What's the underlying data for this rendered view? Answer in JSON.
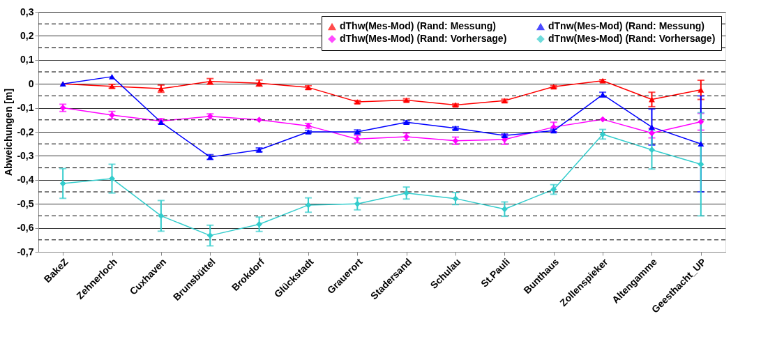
{
  "chart_data": {
    "type": "line",
    "ylabel": "Abweichungen [m]",
    "categories": [
      "BakeZ",
      "Zehnerloch",
      "Cuxhaven",
      "Brunsbüttel",
      "Brokdorf",
      "Glückstadt",
      "Grauerort",
      "Stadersand",
      "Schulau",
      "St.Pauli",
      "Bunthaus",
      "Zollenspieker",
      "Altengamme",
      "Geesthacht_UP"
    ],
    "ylim": [
      -0.7,
      0.3
    ],
    "yticks": [
      {
        "value": 0.3,
        "label": "0,3"
      },
      {
        "value": 0.2,
        "label": "0,2"
      },
      {
        "value": 0.1,
        "label": "0,1"
      },
      0,
      {
        "value": -0.1,
        "label": "-0,1"
      },
      {
        "value": -0.2,
        "label": "-0,2"
      },
      {
        "value": -0.3,
        "label": "-0,3"
      },
      {
        "value": -0.4,
        "label": "-0,4"
      },
      {
        "value": -0.5,
        "label": "-0,5"
      },
      {
        "value": -0.6,
        "label": "-0,6"
      },
      {
        "value": -0.7,
        "label": "-0,7"
      }
    ],
    "grid": "y",
    "legend": "top right",
    "ref_lines": [
      {
        "axis": "y",
        "value": 0.25,
        "line_style": "dashed"
      },
      {
        "axis": "y",
        "value": 0.15,
        "line_style": "dashed"
      },
      {
        "axis": "y",
        "value": 0.05,
        "line_style": "dashed"
      },
      {
        "axis": "y",
        "value": -0.05,
        "line_style": "dashed"
      },
      {
        "axis": "y",
        "value": -0.15,
        "line_style": "dashed"
      },
      {
        "axis": "y",
        "value": -0.25,
        "line_style": "dashed"
      },
      {
        "axis": "y",
        "value": -0.35,
        "line_style": "dashed"
      },
      {
        "axis": "y",
        "value": -0.45,
        "line_style": "dashed"
      },
      {
        "axis": "y",
        "value": -0.55,
        "line_style": "dashed"
      },
      {
        "axis": "y",
        "value": -0.65,
        "line_style": "dashed"
      }
    ],
    "series": [
      {
        "name": "dThw(Mes-Mod) (Rand: Messung)",
        "color": "#ff0000",
        "marker": "triangle",
        "values": [
          0,
          -0.01,
          -0.02,
          0.01,
          0.003,
          -0.015,
          -0.075,
          -0.068,
          -0.088,
          -0.07,
          -0.012,
          0.013,
          -0.065,
          -0.025
        ],
        "errors": [
          null,
          0.008,
          0.015,
          0.012,
          0.013,
          0.007,
          0.006,
          0.006,
          0.005,
          0.006,
          0.005,
          0.005,
          0.03,
          0.04
        ]
      },
      {
        "name": "dThw(Mes-Mod) (Rand: Vorhersage)",
        "color": "#ff00ff",
        "marker": "diamond",
        "values": [
          -0.1,
          -0.13,
          -0.155,
          -0.135,
          -0.15,
          -0.175,
          -0.23,
          -0.22,
          -0.237,
          -0.232,
          -0.18,
          -0.148,
          -0.205,
          -0.158
        ],
        "errors": [
          0.015,
          0.015,
          0.01,
          0.01,
          null,
          0.01,
          0.015,
          0.015,
          0.015,
          0.02,
          0.02,
          null,
          0.02,
          0.035
        ]
      },
      {
        "name": "dTnw(Mes-Mod) (Rand: Messung)",
        "color": "#0000ff",
        "marker": "triangle",
        "values": [
          0,
          0.03,
          -0.16,
          -0.305,
          -0.275,
          -0.2,
          -0.2,
          -0.16,
          -0.185,
          -0.215,
          -0.195,
          -0.045,
          -0.18,
          -0.25
        ],
        "errors": [
          null,
          null,
          null,
          0.01,
          0.008,
          0.005,
          0.008,
          0.006,
          0.006,
          0.006,
          0.006,
          0.01,
          0.075,
          0.2
        ]
      },
      {
        "name": "dTnw(Mes-Mod) (Rand: Vorhersage)",
        "color": "#33cccc",
        "marker": "diamond",
        "values": [
          -0.415,
          -0.395,
          -0.55,
          -0.632,
          -0.585,
          -0.505,
          -0.5,
          -0.455,
          -0.478,
          -0.522,
          -0.44,
          -0.21,
          -0.275,
          -0.335
        ],
        "errors": [
          0.062,
          0.06,
          0.064,
          0.043,
          0.03,
          0.03,
          0.025,
          0.025,
          0.025,
          0.03,
          0.02,
          0.02,
          0.08,
          0.215
        ]
      }
    ]
  }
}
